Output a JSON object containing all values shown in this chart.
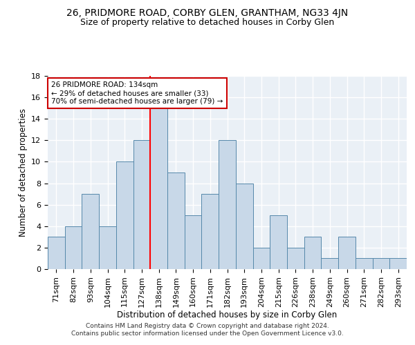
{
  "title": "26, PRIDMORE ROAD, CORBY GLEN, GRANTHAM, NG33 4JN",
  "subtitle": "Size of property relative to detached houses in Corby Glen",
  "xlabel": "Distribution of detached houses by size in Corby Glen",
  "ylabel": "Number of detached properties",
  "categories": [
    "71sqm",
    "82sqm",
    "93sqm",
    "104sqm",
    "115sqm",
    "127sqm",
    "138sqm",
    "149sqm",
    "160sqm",
    "171sqm",
    "182sqm",
    "193sqm",
    "204sqm",
    "215sqm",
    "226sqm",
    "238sqm",
    "249sqm",
    "260sqm",
    "271sqm",
    "282sqm",
    "293sqm"
  ],
  "values": [
    3,
    4,
    7,
    4,
    10,
    12,
    15,
    9,
    5,
    7,
    12,
    8,
    2,
    5,
    2,
    3,
    1,
    3,
    1,
    1,
    1
  ],
  "bar_color": "#c8d8e8",
  "bar_edge_color": "#5588aa",
  "highlight_line_index": 6,
  "ylim": [
    0,
    18
  ],
  "yticks": [
    0,
    2,
    4,
    6,
    8,
    10,
    12,
    14,
    16,
    18
  ],
  "annotation_line1": "26 PRIDMORE ROAD: 134sqm",
  "annotation_line2": "← 29% of detached houses are smaller (33)",
  "annotation_line3": "70% of semi-detached houses are larger (79) →",
  "ann_box_facecolor": "#ffffff",
  "ann_box_edgecolor": "#cc0000",
  "footer_line1": "Contains HM Land Registry data © Crown copyright and database right 2024.",
  "footer_line2": "Contains public sector information licensed under the Open Government Licence v3.0.",
  "background_color": "#eaf0f6",
  "grid_color": "#ffffff",
  "title_fontsize": 10,
  "subtitle_fontsize": 9,
  "axis_label_fontsize": 8.5,
  "tick_fontsize": 8,
  "footer_fontsize": 6.5
}
